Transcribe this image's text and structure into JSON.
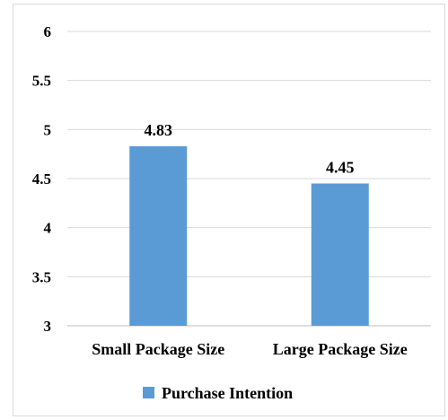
{
  "chart_data": {
    "type": "bar",
    "categories": [
      "Small Package Size",
      "Large Package Size"
    ],
    "series": [
      {
        "name": "Purchase Intention",
        "values": [
          4.83,
          4.45
        ],
        "color": "#5b9bd5"
      }
    ],
    "data_labels": [
      "4.83",
      "4.45"
    ],
    "yticks": [
      "3",
      "3.5",
      "4",
      "4.5",
      "5",
      "5.5",
      "6"
    ],
    "ylim": [
      3,
      6
    ],
    "grid": true,
    "legend_position": "bottom",
    "title": "",
    "xlabel": "",
    "ylabel": ""
  }
}
